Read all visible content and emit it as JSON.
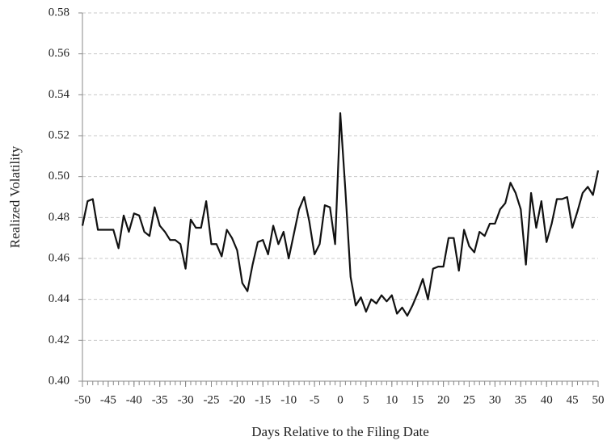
{
  "chart_data": {
    "type": "line",
    "xlabel": "Days Relative to the Filing Date",
    "ylabel": "Realized Volatility",
    "x": [
      -50,
      -49,
      -48,
      -47,
      -46,
      -45,
      -44,
      -43,
      -42,
      -41,
      -40,
      -39,
      -38,
      -37,
      -36,
      -35,
      -34,
      -33,
      -32,
      -31,
      -30,
      -29,
      -28,
      -27,
      -26,
      -25,
      -24,
      -23,
      -22,
      -21,
      -20,
      -19,
      -18,
      -17,
      -16,
      -15,
      -14,
      -13,
      -12,
      -11,
      -10,
      -9,
      -8,
      -7,
      -6,
      -5,
      -4,
      -3,
      -2,
      -1,
      0,
      1,
      2,
      3,
      4,
      5,
      6,
      7,
      8,
      9,
      10,
      11,
      12,
      13,
      14,
      15,
      16,
      17,
      18,
      19,
      20,
      21,
      22,
      23,
      24,
      25,
      26,
      27,
      28,
      29,
      30,
      31,
      32,
      33,
      34,
      35,
      36,
      37,
      38,
      39,
      40,
      41,
      42,
      43,
      44,
      45,
      46,
      47,
      48,
      49,
      50
    ],
    "series": [
      {
        "color": "#111111",
        "values": [
          0.476,
          0.488,
          0.489,
          0.474,
          0.474,
          0.474,
          0.474,
          0.465,
          0.481,
          0.473,
          0.482,
          0.481,
          0.473,
          0.471,
          0.485,
          0.476,
          0.473,
          0.469,
          0.469,
          0.467,
          0.455,
          0.479,
          0.475,
          0.475,
          0.488,
          0.467,
          0.467,
          0.461,
          0.474,
          0.47,
          0.464,
          0.448,
          0.444,
          0.457,
          0.468,
          0.469,
          0.462,
          0.476,
          0.467,
          0.473,
          0.46,
          0.472,
          0.484,
          0.49,
          0.478,
          0.462,
          0.467,
          0.486,
          0.485,
          0.467,
          0.531,
          0.493,
          0.451,
          0.437,
          0.441,
          0.434,
          0.44,
          0.438,
          0.442,
          0.439,
          0.442,
          0.433,
          0.436,
          0.432,
          0.437,
          0.443,
          0.45,
          0.44,
          0.455,
          0.456,
          0.456,
          0.47,
          0.47,
          0.454,
          0.474,
          0.466,
          0.463,
          0.473,
          0.471,
          0.477,
          0.477,
          0.484,
          0.487,
          0.497,
          0.492,
          0.484,
          0.457,
          0.492,
          0.475,
          0.488,
          0.468,
          0.477,
          0.489,
          0.489,
          0.49,
          0.475,
          0.483,
          0.492,
          0.495,
          0.491,
          0.503
        ]
      }
    ],
    "xlim": [
      -50,
      50
    ],
    "xticks": [
      -50,
      -45,
      -40,
      -35,
      -30,
      -25,
      -20,
      -15,
      -10,
      -5,
      0,
      5,
      10,
      15,
      20,
      25,
      30,
      35,
      40,
      45,
      50
    ],
    "ylim": [
      0.4,
      0.58
    ],
    "yticks": [
      {
        "value": 0.4,
        "label": "0.40"
      },
      {
        "value": 0.42,
        "label": "0.42"
      },
      {
        "value": 0.44,
        "label": "0.44"
      },
      {
        "value": 0.46,
        "label": "0.46"
      },
      {
        "value": 0.48,
        "label": "0.48"
      },
      {
        "value": 0.5,
        "label": "0.50"
      },
      {
        "value": 0.52,
        "label": "0.52"
      },
      {
        "value": 0.54,
        "label": "0.54"
      },
      {
        "value": 0.56,
        "label": "0.56"
      },
      {
        "value": 0.58,
        "label": "0.58"
      }
    ],
    "grid": true
  }
}
